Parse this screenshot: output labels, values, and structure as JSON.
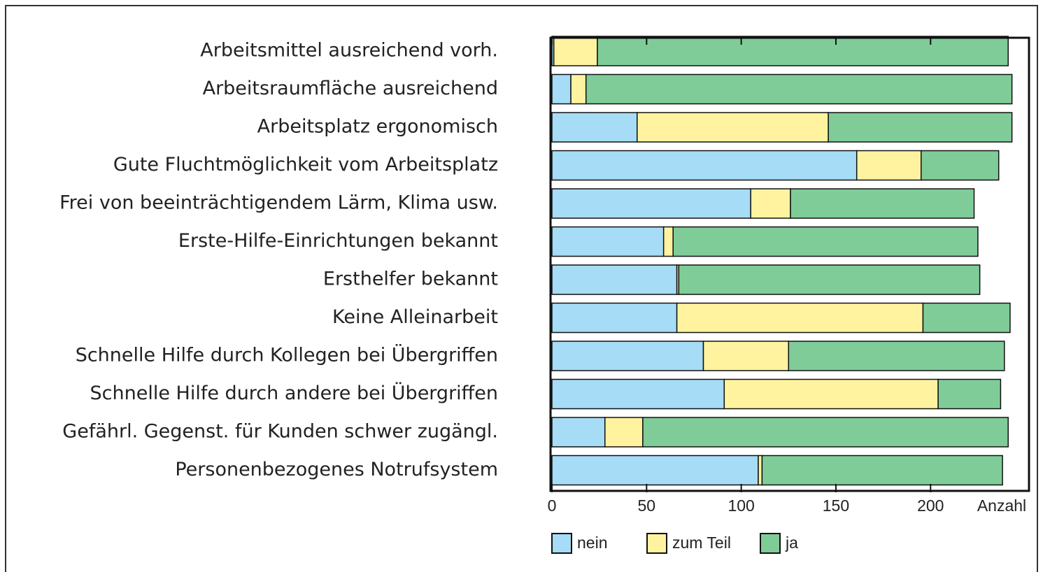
{
  "chart_data": {
    "type": "stacked-barh",
    "categories": [
      "Arbeitsmittel ausreichend vorh.",
      "Arbeitsraumfläche ausreichend",
      "Arbeitsplatz ergonomisch",
      "Gute Fluchtmöglichkeit vom Arbeitsplatz",
      "Frei von beeinträchtigendem Lärm, Klima usw.",
      "Erste-Hilfe-Einrichtungen bekannt",
      "Ersthelfer bekannt",
      "Keine Alleinarbeit",
      "Schnelle Hilfe durch Kollegen bei Übergriffen",
      "Schnelle Hilfe durch andere bei Übergriffen",
      "Gefährl. Gegenst. für Kunden schwer zugängl.",
      "Personenbezogenes Notrufsystem"
    ],
    "series": [
      {
        "name": "nein",
        "color": "#a6dcf5",
        "values": [
          1,
          10,
          45,
          161,
          105,
          59,
          66,
          66,
          80,
          91,
          28,
          109
        ]
      },
      {
        "name": "zum Teil",
        "color": "#fff3a0",
        "values": [
          23,
          8,
          101,
          34,
          21,
          5,
          1,
          130,
          45,
          113,
          20,
          2
        ]
      },
      {
        "name": "ja",
        "color": "#7fcc98",
        "values": [
          217,
          225,
          97,
          41,
          97,
          161,
          159,
          46,
          114,
          33,
          193,
          127
        ]
      }
    ],
    "xlabel": "Anzahl",
    "xlim": [
      0,
      252
    ],
    "xticks": [
      0,
      50,
      100,
      150,
      200
    ]
  }
}
